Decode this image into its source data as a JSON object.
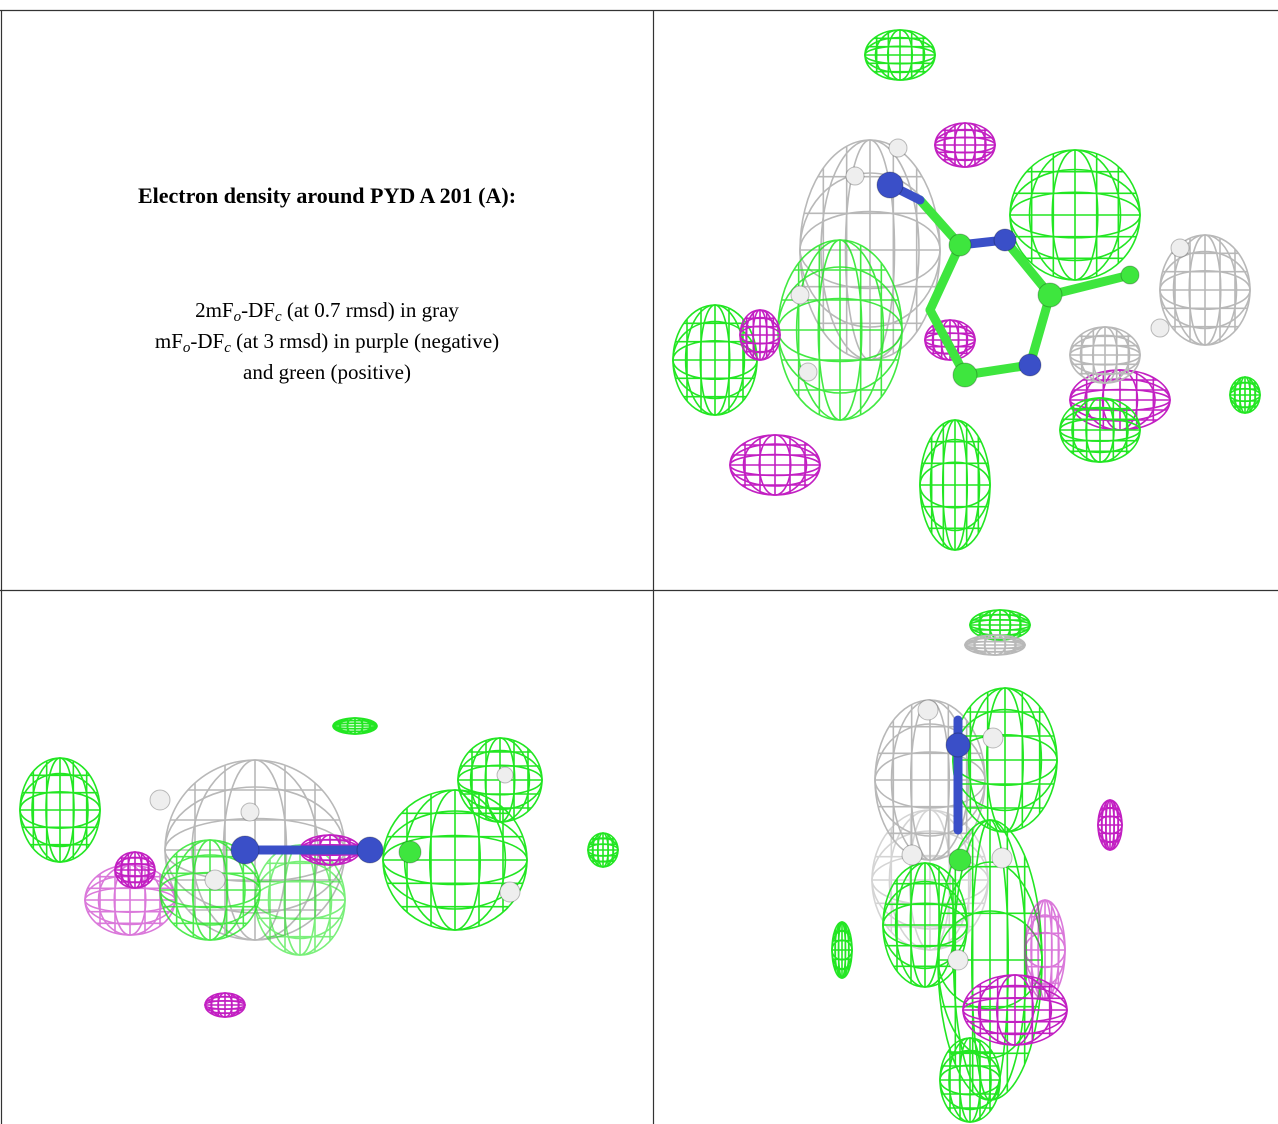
{
  "caption": {
    "title": "Electron density around PYD A 201 (A):",
    "lines": [
      [
        "2mF",
        {
          "sub": "o"
        },
        "-DF",
        {
          "sub": "c"
        },
        " (at 0.7 rmsd) in gray"
      ],
      [
        "mF",
        {
          "sub": "o"
        },
        "-DF",
        {
          "sub": "c"
        },
        " (at 3 rmsd) in purple (negative)"
      ],
      [
        "and green (positive)"
      ]
    ]
  }
}
